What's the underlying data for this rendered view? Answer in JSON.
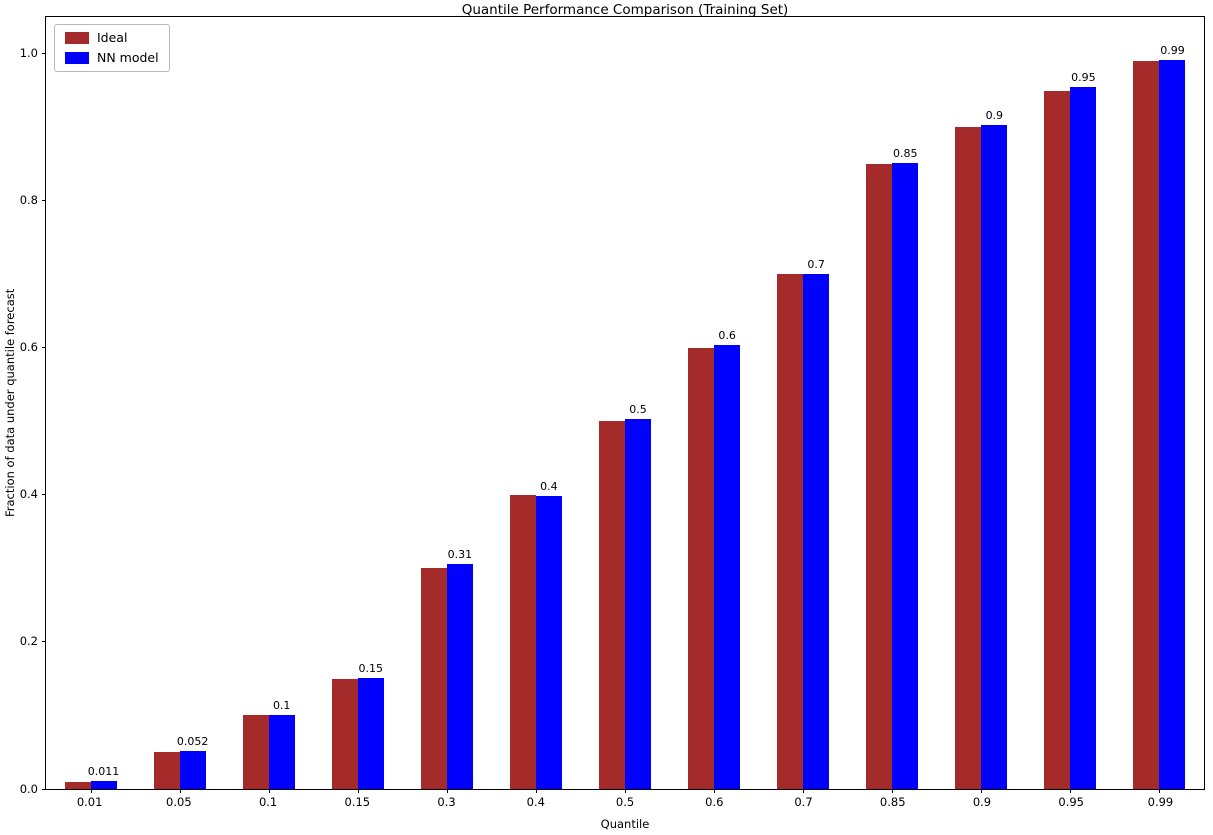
{
  "chart_data": {
    "type": "bar",
    "title": "Quantile Performance Comparison (Training Set)",
    "xlabel": "Quantile",
    "ylabel": "Fraction of data under quantile forecast",
    "categories": [
      "0.01",
      "0.05",
      "0.1",
      "0.15",
      "0.3",
      "0.4",
      "0.5",
      "0.6",
      "0.7",
      "0.85",
      "0.9",
      "0.95",
      "0.99"
    ],
    "series": [
      {
        "name": "Ideal",
        "color": "#a52a2a",
        "values": [
          0.01,
          0.05,
          0.1,
          0.15,
          0.3,
          0.4,
          0.5,
          0.6,
          0.7,
          0.85,
          0.9,
          0.95,
          0.99
        ]
      },
      {
        "name": "NN model",
        "color": "#0000ff",
        "values": [
          0.011,
          0.052,
          0.101,
          0.151,
          0.306,
          0.398,
          0.503,
          0.604,
          0.7,
          0.851,
          0.903,
          0.955,
          0.992
        ]
      }
    ],
    "bar_labels": [
      "0.011",
      "0.052",
      "0.1",
      "0.15",
      "0.31",
      "0.4",
      "0.5",
      "0.6",
      "0.7",
      "0.85",
      "0.9",
      "0.95",
      "0.99"
    ],
    "ylim": [
      0,
      1.05
    ],
    "yticks": [
      0.0,
      0.2,
      0.4,
      0.6,
      0.8,
      1.0
    ],
    "legend_position": "upper left",
    "grid": false
  }
}
